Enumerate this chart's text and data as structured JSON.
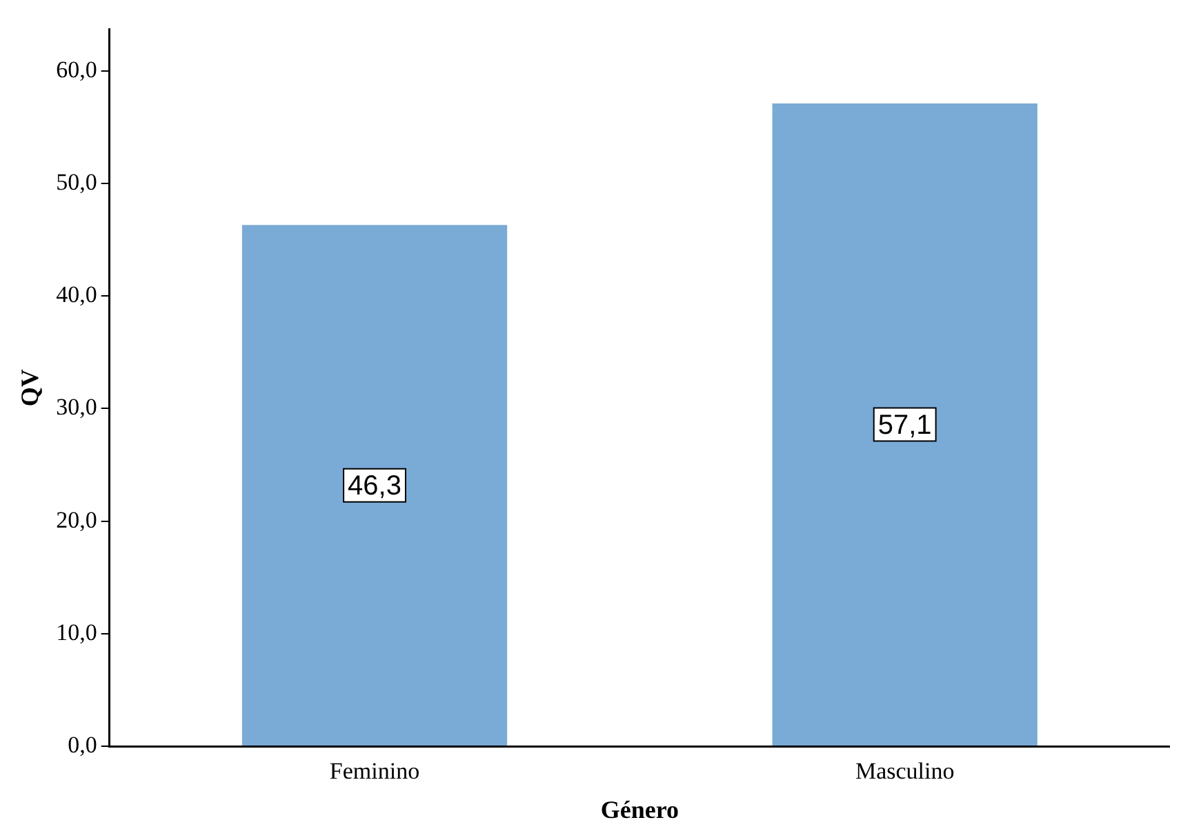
{
  "chart_data": {
    "type": "bar",
    "xlabel": "Género",
    "ylabel": "QV",
    "categories": [
      "Feminino",
      "Masculino"
    ],
    "values": [
      46.3,
      57.1
    ],
    "color": "#7aaad6",
    "value_labels": [
      "46,3",
      "57,1"
    ],
    "ylim": [
      0,
      63.7
    ],
    "yticks": [
      {
        "value": 0,
        "label": "0,0"
      },
      {
        "value": 10,
        "label": "10,0"
      },
      {
        "value": 20,
        "label": "20,0"
      },
      {
        "value": 30,
        "label": "30,0"
      },
      {
        "value": 40,
        "label": "40,0"
      },
      {
        "value": 50,
        "label": "50,0"
      },
      {
        "value": 60,
        "label": "60,0"
      }
    ],
    "grid": false,
    "legend": false
  }
}
